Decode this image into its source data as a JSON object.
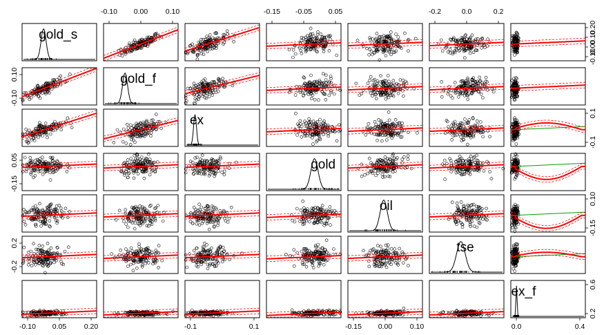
{
  "chart_data": {
    "type": "scatter",
    "title": "",
    "description": "scatterplot matrix",
    "variables": [
      "gold_s",
      "gold_f",
      "ex",
      "gold",
      "oil",
      "tse",
      "ex_f"
    ],
    "diagonal": "density",
    "smoothers": [
      "linear fit (green)",
      "loess (red) with spread (red dashed)"
    ],
    "colors": {
      "points": "#000000",
      "linear_fit": "#00a000",
      "loess": "#ff0000"
    },
    "axis_labels": {
      "top": {
        "gold_f": [
          "-0.10",
          "0.00",
          "0.10"
        ],
        "gold": [
          "-0.15",
          "-0.05",
          "0.05"
        ],
        "tse": [
          "-0.2",
          "0.0",
          "0.2"
        ]
      },
      "bottom": {
        "gold_s": [
          "-0.10",
          "0.05",
          "0.20"
        ],
        "ex": [
          "-0.1",
          "0.1"
        ],
        "oil": [
          "-0.15",
          "0.00",
          "0.10"
        ],
        "ex_f": [
          "0.0",
          "0.4"
        ]
      },
      "left": {
        "gold_f": [
          "0.10",
          "-0.10"
        ],
        "gold": [
          "0.05",
          "-0.15"
        ],
        "tse": [
          "0.2",
          "-0.2"
        ]
      },
      "right": {
        "gold_s": [
          "0.20",
          "0.10",
          "0.00",
          "-0.10"
        ],
        "ex": [
          "0.1",
          "-0.1"
        ],
        "oil": [
          "0.10",
          "-0.15"
        ],
        "ex_f": [
          "0.6",
          "0.2"
        ]
      }
    },
    "ranges": {
      "gold_s": [
        -0.12,
        0.24
      ],
      "gold_f": [
        -0.15,
        0.15
      ],
      "ex": [
        -0.18,
        0.28
      ],
      "gold": [
        -0.19,
        0.07
      ],
      "oil": [
        -0.19,
        0.13
      ],
      "tse": [
        -0.33,
        0.37
      ],
      "ex_f": [
        -0.05,
        0.65
      ]
    }
  }
}
